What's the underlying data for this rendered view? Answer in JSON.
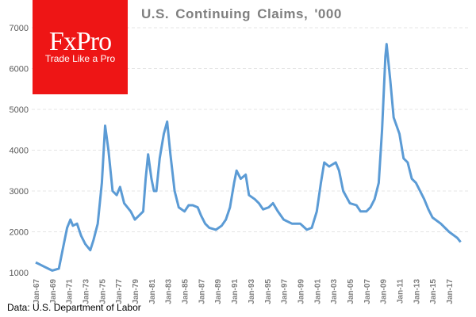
{
  "logo": {
    "brand": "FxPro",
    "tagline": "Trade Like a Pro",
    "color": "#ee1515"
  },
  "source": "Data: U.S. Department of Labor",
  "chart_data": {
    "type": "line",
    "title": "U.S. Continuing  Claims, '000",
    "xlabel": "",
    "ylabel": "",
    "ylim": [
      1000,
      7000
    ],
    "xlim": [
      1967,
      2018.5
    ],
    "yticks": [
      1000,
      2000,
      3000,
      4000,
      5000,
      6000,
      7000
    ],
    "xtick_labels": [
      "Jan-67",
      "Jan-69",
      "Jan-71",
      "Jan-73",
      "Jan-75",
      "Jan-77",
      "Jan-79",
      "Jan-81",
      "Jan-83",
      "Jan-85",
      "Jan-87",
      "Jan-89",
      "Jan-91",
      "Jan-93",
      "Jan-95",
      "Jan-97",
      "Jan-99",
      "Jan-01",
      "Jan-03",
      "Jan-05",
      "Jan-07",
      "Jan-09",
      "Jan-11",
      "Jan-13",
      "Jan-15",
      "Jan-17"
    ],
    "grid": true,
    "line_color": "#5b9bd5",
    "series": [
      {
        "x": [
          1967.0,
          1967.5,
          1968.0,
          1968.5,
          1969.0,
          1969.8,
          1970.3,
          1970.8,
          1971.2,
          1971.5,
          1972.0,
          1972.5,
          1973.0,
          1973.6,
          1974.0,
          1974.5,
          1975.0,
          1975.4,
          1975.8,
          1976.3,
          1976.8,
          1977.2,
          1977.7,
          1978.5,
          1979.0,
          1979.5,
          1980.0,
          1980.3,
          1980.6,
          1981.0,
          1981.3,
          1981.6,
          1982.0,
          1982.5,
          1982.9,
          1983.3,
          1983.8,
          1984.3,
          1985.0,
          1985.5,
          1986.0,
          1986.6,
          1987.0,
          1987.5,
          1988.0,
          1988.8,
          1989.5,
          1990.0,
          1990.5,
          1991.0,
          1991.3,
          1991.8,
          1992.4,
          1992.8,
          1993.5,
          1994.0,
          1994.5,
          1995.2,
          1995.7,
          1996.3,
          1997.0,
          1998.0,
          1999.0,
          1999.8,
          2000.4,
          2001.0,
          2001.5,
          2001.9,
          2002.5,
          2003.3,
          2003.7,
          2004.2,
          2005.0,
          2005.8,
          2006.3,
          2007.0,
          2007.5,
          2008.0,
          2008.5,
          2008.9,
          2009.3,
          2009.45,
          2009.9,
          2010.3,
          2011.0,
          2011.5,
          2012.0,
          2012.5,
          2013.0,
          2013.5,
          2014.0,
          2014.5,
          2015.0,
          2016.0,
          2017.0,
          2018.0,
          2018.4
        ],
        "values": [
          1250,
          1200,
          1150,
          1100,
          1050,
          1100,
          1600,
          2100,
          2300,
          2150,
          2200,
          1900,
          1700,
          1550,
          1800,
          2200,
          3200,
          4600,
          4000,
          3000,
          2900,
          3100,
          2700,
          2500,
          2300,
          2400,
          2500,
          3300,
          3900,
          3300,
          3000,
          3000,
          3800,
          4400,
          4700,
          3900,
          3000,
          2600,
          2500,
          2650,
          2650,
          2600,
          2400,
          2200,
          2100,
          2050,
          2150,
          2300,
          2600,
          3200,
          3500,
          3300,
          3400,
          2900,
          2800,
          2700,
          2550,
          2600,
          2700,
          2500,
          2300,
          2200,
          2200,
          2050,
          2100,
          2500,
          3200,
          3700,
          3600,
          3700,
          3500,
          3000,
          2700,
          2650,
          2500,
          2500,
          2600,
          2800,
          3200,
          4500,
          6300,
          6600,
          5700,
          4800,
          4400,
          3800,
          3700,
          3300,
          3200,
          3000,
          2800,
          2550,
          2350,
          2200,
          2000,
          1850,
          1750
        ]
      }
    ]
  }
}
